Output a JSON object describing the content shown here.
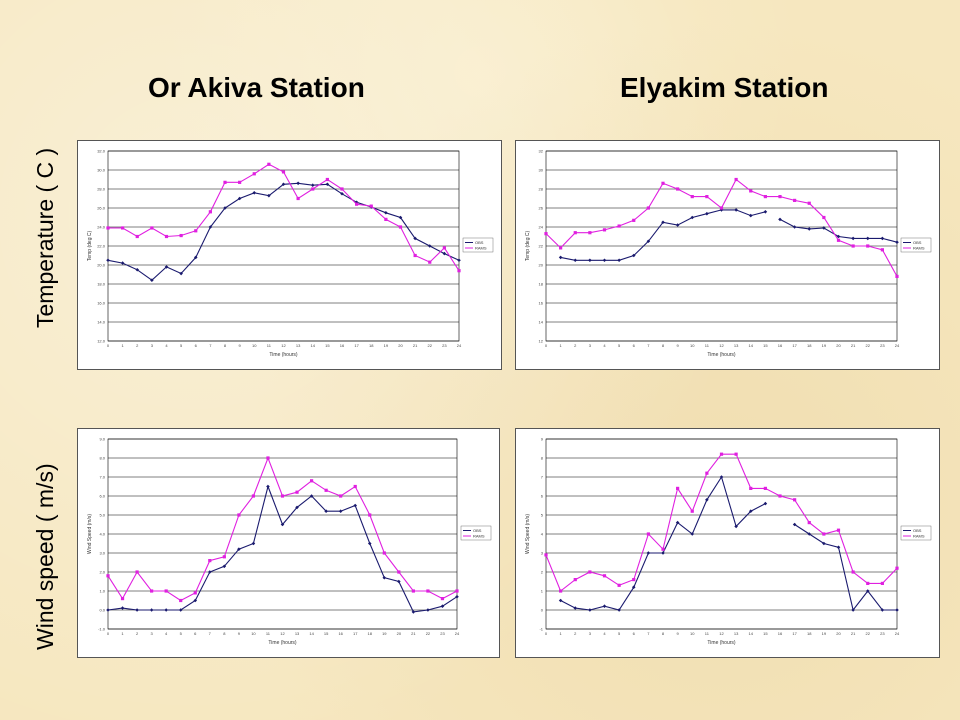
{
  "titles": {
    "left": "Or Akiva Station",
    "right": "Elyakim Station"
  },
  "row_labels": {
    "top": "Temperature ( C )",
    "bottom": "Wind speed ( m/s)"
  },
  "colors": {
    "measured": "#1a1a6e",
    "model": "#e020e0"
  },
  "chart_data": [
    {
      "type": "line",
      "xlabel": "Time (hours)",
      "ylabel": "Temp (deg C)",
      "xlim": [
        0,
        24
      ],
      "ylim": [
        12,
        32
      ],
      "x_ticks": [
        "0",
        "1",
        "2",
        "3",
        "4",
        "5",
        "6",
        "7",
        "8",
        "9",
        "10",
        "11",
        "12",
        "13",
        "14",
        "15",
        "16",
        "17",
        "18",
        "19",
        "20",
        "21",
        "22",
        "23",
        "24"
      ],
      "y_ticks": [
        "12.0",
        "14.0",
        "16.0",
        "18.0",
        "20.0",
        "22.0",
        "24.0",
        "26.0",
        "28.0",
        "30.0",
        "32.0"
      ],
      "legend": [
        "OBS",
        "RAMS"
      ],
      "series": [
        {
          "name": "OBS",
          "color": "#1a1a6e",
          "x": [
            0,
            1,
            2,
            3,
            4,
            5,
            6,
            7,
            8,
            9,
            10,
            11,
            12,
            13,
            14,
            15,
            16,
            17,
            18,
            19,
            20,
            21,
            22,
            23,
            24
          ],
          "y": [
            20.5,
            20.2,
            19.5,
            18.4,
            19.8,
            19.1,
            20.8,
            24.0,
            26.0,
            27.0,
            27.6,
            27.3,
            28.5,
            28.6,
            28.4,
            28.5,
            27.5,
            26.6,
            26.1,
            25.5,
            25.0,
            22.8,
            22.0,
            21.2,
            20.5
          ]
        },
        {
          "name": "RAMS",
          "color": "#e020e0",
          "x": [
            0,
            1,
            2,
            3,
            4,
            5,
            6,
            7,
            8,
            9,
            10,
            11,
            12,
            13,
            14,
            15,
            16,
            17,
            18,
            19,
            20,
            21,
            22,
            23,
            24
          ],
          "y": [
            23.9,
            23.9,
            23.0,
            23.9,
            23.0,
            23.1,
            23.6,
            25.6,
            28.7,
            28.7,
            29.6,
            30.6,
            29.8,
            27.0,
            28.0,
            29.0,
            28.0,
            26.4,
            26.2,
            24.8,
            24.0,
            21.0,
            20.3,
            21.8,
            19.4
          ]
        }
      ]
    },
    {
      "type": "line",
      "xlabel": "Time (hours)",
      "ylabel": "Temp (deg C)",
      "xlim": [
        0,
        24
      ],
      "ylim": [
        12,
        32
      ],
      "x_ticks": [
        "0",
        "1",
        "2",
        "3",
        "4",
        "5",
        "6",
        "7",
        "8",
        "9",
        "10",
        "11",
        "12",
        "13",
        "14",
        "15",
        "16",
        "17",
        "18",
        "19",
        "20",
        "21",
        "22",
        "23",
        "24"
      ],
      "y_ticks": [
        "12",
        "14",
        "16",
        "18",
        "20",
        "22",
        "24",
        "26",
        "28",
        "30",
        "32"
      ],
      "legend": [
        "OBS",
        "RAMS"
      ],
      "series": [
        {
          "name": "OBS",
          "color": "#1a1a6e",
          "x": [
            1,
            2,
            3,
            4,
            5,
            6,
            7,
            8,
            9,
            10,
            11,
            12,
            13,
            14,
            15,
            null,
            16,
            17,
            18,
            19,
            20,
            21,
            22,
            23,
            24
          ],
          "y": [
            20.8,
            20.5,
            20.5,
            20.5,
            20.5,
            21.0,
            22.5,
            24.5,
            24.2,
            25.0,
            25.4,
            25.8,
            25.8,
            25.2,
            25.6,
            null,
            24.8,
            24.0,
            23.8,
            23.9,
            23.0,
            22.8,
            22.8,
            22.8,
            22.4
          ]
        },
        {
          "name": "RAMS",
          "color": "#e020e0",
          "x": [
            0,
            1,
            2,
            3,
            4,
            5,
            6,
            7,
            8,
            9,
            10,
            11,
            12,
            13,
            14,
            15,
            16,
            17,
            18,
            19,
            20,
            21,
            22,
            23,
            24
          ],
          "y": [
            23.3,
            21.8,
            23.4,
            23.4,
            23.7,
            24.1,
            24.7,
            26.0,
            28.6,
            28.0,
            27.2,
            27.2,
            26.0,
            29.0,
            27.8,
            27.2,
            27.2,
            26.8,
            26.5,
            25.0,
            22.6,
            22.0,
            22.0,
            21.6,
            18.8
          ]
        }
      ]
    },
    {
      "type": "line",
      "xlabel": "Time (hours)",
      "ylabel": "Wind Speed (m/s)",
      "xlim": [
        0,
        24
      ],
      "ylim": [
        -1,
        9
      ],
      "x_ticks": [
        "0",
        "1",
        "2",
        "3",
        "4",
        "5",
        "6",
        "7",
        "8",
        "9",
        "10",
        "11",
        "12",
        "13",
        "14",
        "15",
        "16",
        "17",
        "18",
        "19",
        "20",
        "21",
        "22",
        "23",
        "24"
      ],
      "y_ticks": [
        "-1.0",
        "0.0",
        "1.0",
        "2.0",
        "3.0",
        "4.0",
        "5.0",
        "6.0",
        "7.0",
        "8.0",
        "9.0"
      ],
      "legend": [
        "OBS",
        "RAMS"
      ],
      "series": [
        {
          "name": "OBS",
          "color": "#1a1a6e",
          "x": [
            0,
            1,
            2,
            3,
            4,
            5,
            6,
            7,
            8,
            9,
            10,
            11,
            12,
            13,
            14,
            15,
            16,
            17,
            18,
            19,
            20,
            21,
            22,
            23,
            24
          ],
          "y": [
            0.0,
            0.1,
            0.0,
            0.0,
            0.0,
            0.0,
            0.5,
            2.0,
            2.3,
            3.2,
            3.5,
            6.5,
            4.5,
            5.4,
            6.0,
            5.2,
            5.2,
            5.5,
            3.5,
            1.7,
            1.5,
            -0.1,
            0.0,
            0.2,
            0.7
          ]
        },
        {
          "name": "RAMS",
          "color": "#e020e0",
          "x": [
            0,
            1,
            2,
            3,
            4,
            5,
            6,
            7,
            8,
            9,
            10,
            11,
            12,
            13,
            14,
            15,
            16,
            17,
            18,
            19,
            20,
            21,
            22,
            23,
            24
          ],
          "y": [
            1.8,
            0.6,
            2.0,
            1.0,
            1.0,
            0.5,
            0.9,
            2.6,
            2.8,
            5.0,
            6.0,
            8.0,
            6.0,
            6.2,
            6.8,
            6.3,
            6.0,
            6.5,
            5.0,
            3.0,
            2.0,
            1.0,
            1.0,
            0.6,
            1.0
          ]
        }
      ]
    },
    {
      "type": "line",
      "xlabel": "Time (hours)",
      "ylabel": "Wind Speed (m/s)",
      "xlim": [
        0,
        24
      ],
      "ylim": [
        -1,
        9
      ],
      "x_ticks": [
        "0",
        "1",
        "2",
        "3",
        "4",
        "5",
        "6",
        "7",
        "8",
        "9",
        "10",
        "11",
        "12",
        "13",
        "14",
        "15",
        "16",
        "17",
        "18",
        "19",
        "20",
        "21",
        "22",
        "23",
        "24"
      ],
      "y_ticks": [
        "-1",
        "0",
        "1",
        "2",
        "3",
        "4",
        "5",
        "6",
        "7",
        "8",
        "9"
      ],
      "legend": [
        "OBS",
        "RAMS"
      ],
      "series": [
        {
          "name": "OBS",
          "color": "#1a1a6e",
          "x": [
            1,
            2,
            3,
            4,
            5,
            6,
            7,
            8,
            9,
            10,
            11,
            12,
            13,
            14,
            15,
            null,
            17,
            18,
            19,
            20,
            21,
            22,
            23,
            24
          ],
          "y": [
            0.5,
            0.1,
            0.0,
            0.2,
            0.0,
            1.2,
            3.0,
            3.0,
            4.6,
            4.0,
            5.8,
            7.0,
            4.4,
            5.2,
            5.6,
            null,
            4.5,
            4.0,
            3.5,
            3.3,
            0.0,
            1.0,
            0.0,
            0.0
          ]
        },
        {
          "name": "RAMS",
          "color": "#e020e0",
          "x": [
            0,
            1,
            2,
            3,
            4,
            5,
            6,
            7,
            8,
            9,
            10,
            11,
            12,
            13,
            14,
            15,
            16,
            17,
            18,
            19,
            20,
            21,
            22,
            23,
            24
          ],
          "y": [
            2.9,
            1.0,
            1.6,
            2.0,
            1.8,
            1.3,
            1.6,
            4.0,
            3.2,
            6.4,
            5.2,
            7.2,
            8.2,
            8.2,
            6.4,
            6.4,
            6.0,
            5.8,
            4.6,
            4.0,
            4.2,
            2.0,
            1.4,
            1.4,
            2.2
          ]
        }
      ]
    }
  ]
}
